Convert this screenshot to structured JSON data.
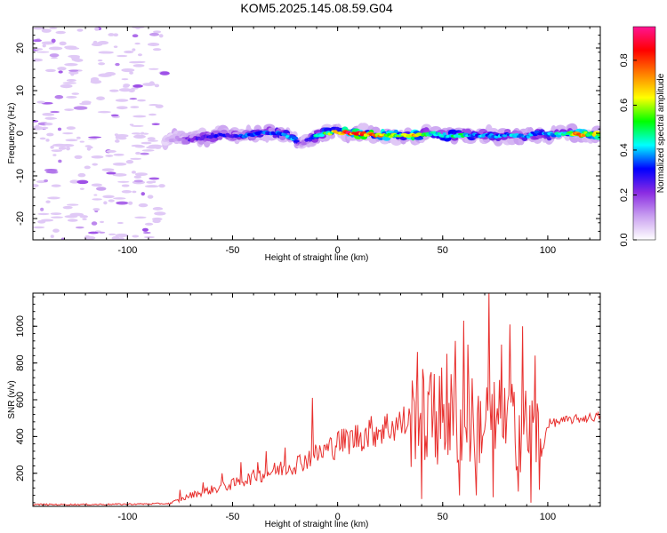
{
  "title": "KOM5.2025.145.08.59.G04",
  "chart_data": [
    {
      "type": "heatmap",
      "xlabel": "Height of straight line (km)",
      "ylabel": "Frequency (Hz)",
      "xlim": [
        -145,
        125
      ],
      "ylim": [
        -25,
        25
      ],
      "x_ticks": [
        -100,
        -50,
        0,
        50,
        100
      ],
      "y_ticks": [
        -20,
        -10,
        0,
        10,
        20
      ],
      "colorbar": {
        "label": "Normalized spectral amplitude",
        "range": [
          0,
          0.95
        ],
        "ticks": [
          0.0,
          0.2,
          0.4,
          0.6,
          0.8
        ],
        "colormap": [
          "#ffffff",
          "#c9a0f0",
          "#8a2be2",
          "#0000ff",
          "#00ffff",
          "#00ff00",
          "#ffff00",
          "#ff8000",
          "#ff0000",
          "#ff1493"
        ]
      },
      "noise_region_x": [
        -145,
        -82
      ],
      "signal_track": {
        "x": [
          -82,
          -75,
          -70,
          -65,
          -60,
          -55,
          -50,
          -45,
          -40,
          -35,
          -30,
          -25,
          -20,
          -17,
          -14,
          -10,
          -5,
          0,
          5,
          10,
          15,
          20,
          25,
          30,
          35,
          40,
          45,
          50,
          55,
          60,
          65,
          70,
          75,
          80,
          85,
          90,
          95,
          100,
          105,
          110,
          115,
          120,
          125
        ],
        "frequency": [
          -1.5,
          -1.2,
          -1.5,
          -1.2,
          -0.6,
          -0.3,
          -0.5,
          -0.6,
          -0.3,
          0.2,
          0.0,
          -0.4,
          -1.5,
          -2.8,
          -1.5,
          -0.6,
          0.0,
          0.3,
          0.0,
          0.0,
          -0.3,
          -0.5,
          -0.6,
          -0.5,
          -0.6,
          -0.3,
          0.0,
          -0.5,
          -0.6,
          -0.4,
          -0.5,
          -0.5,
          -0.6,
          -0.3,
          -0.5,
          -0.6,
          0.0,
          -0.4,
          -0.3,
          0.0,
          -0.3,
          -0.2,
          0.0
        ],
        "amplitude": [
          0.08,
          0.15,
          0.25,
          0.28,
          0.3,
          0.32,
          0.3,
          0.35,
          0.4,
          0.38,
          0.35,
          0.4,
          0.42,
          0.12,
          0.3,
          0.45,
          0.55,
          0.7,
          0.9,
          0.85,
          0.8,
          0.75,
          0.6,
          0.55,
          0.8,
          0.6,
          0.45,
          0.45,
          0.5,
          0.5,
          0.4,
          0.42,
          0.4,
          0.4,
          0.45,
          0.4,
          0.38,
          0.42,
          0.45,
          0.5,
          0.88,
          0.6,
          0.7
        ]
      }
    },
    {
      "type": "line",
      "xlabel": "Height of straight line (km)",
      "ylabel": "SNR (v/v)",
      "xlim": [
        -145,
        125
      ],
      "ylim": [
        20,
        1180
      ],
      "x_ticks": [
        -100,
        -50,
        0,
        50,
        100
      ],
      "y_ticks": [
        200,
        400,
        600,
        800,
        1000
      ],
      "series_color": "#e8302e",
      "baseline": {
        "x": [
          -145,
          -120,
          -100,
          -80,
          -75,
          -70,
          -60,
          -50,
          -40,
          -30,
          -20,
          -10,
          0,
          10,
          20,
          30,
          40,
          50,
          60,
          70,
          80,
          90,
          95,
          97,
          100,
          110,
          125
        ],
        "y": [
          30,
          30,
          32,
          35,
          55,
          80,
          110,
          140,
          180,
          215,
          250,
          300,
          360,
          400,
          440,
          470,
          500,
          510,
          480,
          470,
          460,
          440,
          420,
          300,
          470,
          490,
          510
        ]
      },
      "spikes": [
        {
          "x": -75,
          "y": 110
        },
        {
          "x": -64,
          "y": 150
        },
        {
          "x": -55,
          "y": 200
        },
        {
          "x": -46,
          "y": 260
        },
        {
          "x": -38,
          "y": 260
        },
        {
          "x": -34,
          "y": 320
        },
        {
          "x": -25,
          "y": 340
        },
        {
          "x": -12,
          "y": 610
        },
        {
          "x": 0,
          "y": 420
        },
        {
          "x": 15,
          "y": 490
        },
        {
          "x": 38,
          "y": 860
        },
        {
          "x": 40,
          "y": 60
        },
        {
          "x": 46,
          "y": 740
        },
        {
          "x": 52,
          "y": 850
        },
        {
          "x": 56,
          "y": 920
        },
        {
          "x": 58,
          "y": 80
        },
        {
          "x": 60,
          "y": 1030
        },
        {
          "x": 62,
          "y": 900
        },
        {
          "x": 66,
          "y": 80
        },
        {
          "x": 72,
          "y": 1180
        },
        {
          "x": 74,
          "y": 70
        },
        {
          "x": 78,
          "y": 900
        },
        {
          "x": 82,
          "y": 1010
        },
        {
          "x": 86,
          "y": 100
        },
        {
          "x": 88,
          "y": 1000
        },
        {
          "x": 92,
          "y": 40
        },
        {
          "x": 94,
          "y": 840
        },
        {
          "x": 96,
          "y": 110
        }
      ]
    }
  ]
}
